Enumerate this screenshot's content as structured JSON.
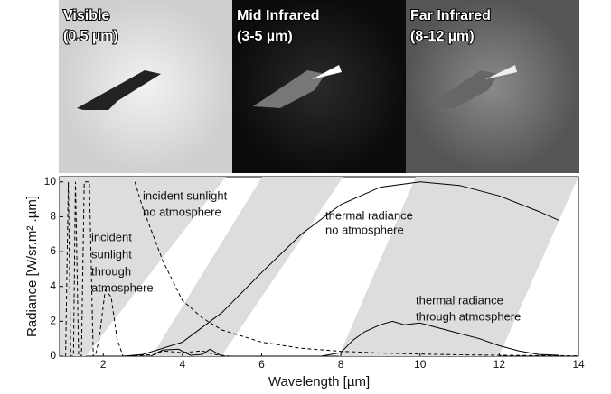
{
  "panels": [
    {
      "title": "Visible",
      "subtitle": "(0.5 µm)"
    },
    {
      "title": "Mid Infrared",
      "subtitle": "(3-5 µm)"
    },
    {
      "title": "Far Infrared",
      "subtitle": "(8-12 µm)"
    }
  ],
  "chart_data": {
    "type": "line",
    "xlabel": "Wavelength [µm]",
    "ylabel": "Radiance [W/sr.m² .µm]",
    "xlim": [
      0.9,
      14
    ],
    "ylim": [
      0,
      10.3
    ],
    "xticks": [
      2,
      4,
      6,
      8,
      10,
      12,
      14
    ],
    "yticks": [
      0,
      2,
      4,
      6,
      8,
      10
    ],
    "annotations": [
      "incident sunlight",
      "no atmosphere",
      "incident",
      "sunlight",
      "through",
      "atmosphere",
      "thermal radiance",
      "no atmosphere",
      "thermal radiance",
      "through atmosphere"
    ],
    "series": [
      {
        "color": "#000",
        "dash": true,
        "x": [
          2.8,
          3,
          3.5,
          4,
          4.5,
          5,
          6,
          7,
          8,
          9,
          10,
          11,
          12,
          13,
          14
        ],
        "values": [
          10,
          8.5,
          5.5,
          3.2,
          2.2,
          1.5,
          0.8,
          0.45,
          0.28,
          0.18,
          0.12,
          0.08,
          0.05,
          0.03,
          0.02
        ]
      },
      {
        "color": "#000",
        "dash": true,
        "x": [
          1.05,
          1.12,
          1.18,
          1.25,
          1.3,
          1.38,
          1.45,
          1.52,
          1.65,
          1.75,
          1.8,
          1.9,
          2.05,
          2.2,
          2.35,
          2.5,
          3.3,
          3.5,
          4,
          4.5,
          4.8,
          5.2
        ],
        "values": [
          0,
          10,
          0,
          0,
          10,
          0,
          0,
          10,
          10,
          0,
          0,
          1,
          3.8,
          3.4,
          1,
          0,
          0.1,
          0.3,
          0.2,
          0.3,
          0.1,
          0
        ]
      },
      {
        "color": "#000",
        "dash": false,
        "x": [
          2.5,
          3,
          4,
          5,
          6,
          7,
          8,
          9,
          10,
          11,
          12,
          13,
          13.5
        ],
        "values": [
          0,
          0.1,
          0.8,
          2.5,
          4.8,
          7,
          8.7,
          9.7,
          10,
          9.8,
          9.2,
          8.3,
          7.8
        ]
      },
      {
        "color": "#000",
        "dash": false,
        "x": [
          3.2,
          3.5,
          3.9,
          4.2,
          4.5,
          4.7,
          5,
          7.5,
          8,
          8.3,
          8.6,
          9,
          9.3,
          9.6,
          10,
          10.5,
          11,
          11.5,
          12,
          12.5,
          13,
          13.5
        ],
        "values": [
          0,
          0.35,
          0.4,
          0.05,
          0.1,
          0.4,
          0,
          0,
          0.2,
          0.9,
          1.4,
          1.8,
          2,
          1.8,
          1.9,
          1.6,
          1.3,
          1,
          0.6,
          0.3,
          0.1,
          0.05
        ]
      }
    ]
  }
}
